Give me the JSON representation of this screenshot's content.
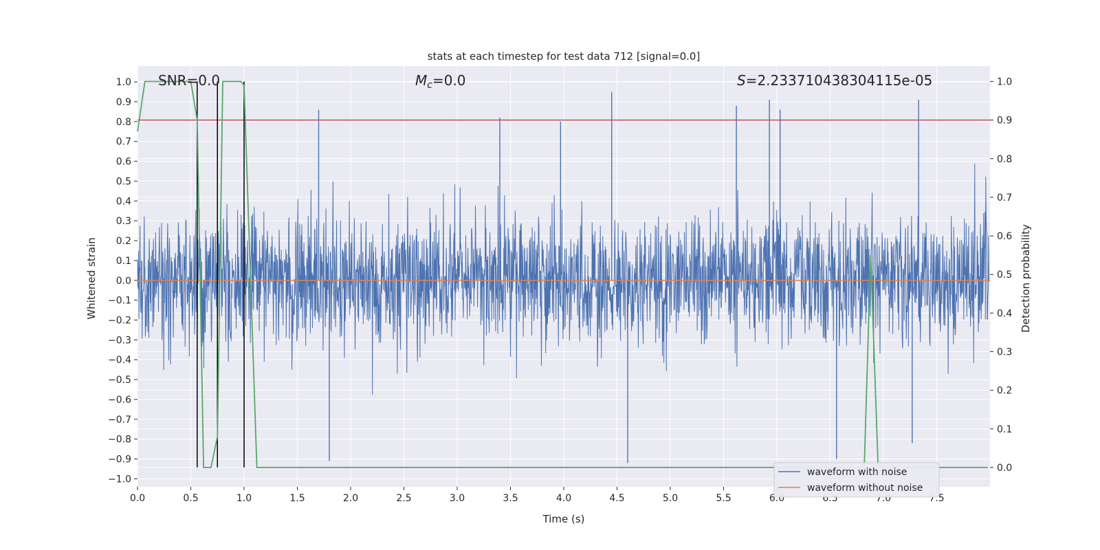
{
  "chart_data": {
    "type": "line",
    "title": "stats at each timestep for test data 712 [signal=0.0]",
    "xlabel": "Time (s)",
    "ylabel": "Whitened strain",
    "ylabel_right": "Detection probability",
    "xlim": [
      0.0,
      8.0
    ],
    "ylim": [
      -1.04,
      1.08
    ],
    "ylim_right": [
      -0.05,
      1.04
    ],
    "x_ticks": [
      0.0,
      0.5,
      1.0,
      1.5,
      2.0,
      2.5,
      3.0,
      3.5,
      4.0,
      4.5,
      5.0,
      5.5,
      6.0,
      6.5,
      7.0,
      7.5
    ],
    "x_tick_labels": [
      "0.0",
      "0.5",
      "1.0",
      "1.5",
      "2.0",
      "2.5",
      "3.0",
      "3.5",
      "4.0",
      "4.5",
      "5.0",
      "5.5",
      "6.0",
      "6.5",
      "7.0",
      "7.5"
    ],
    "y_ticks": [
      -1.0,
      -0.9,
      -0.8,
      -0.7,
      -0.6,
      -0.5,
      -0.4,
      -0.3,
      -0.2,
      -0.1,
      0.0,
      0.1,
      0.2,
      0.3,
      0.4,
      0.5,
      0.6,
      0.7,
      0.8,
      0.9,
      1.0
    ],
    "y_tick_labels": [
      "−1.0",
      "−0.9",
      "−0.8",
      "−0.7",
      "−0.6",
      "−0.5",
      "−0.4",
      "−0.3",
      "−0.2",
      "−0.1",
      "0.0",
      "0.1",
      "0.2",
      "0.3",
      "0.4",
      "0.5",
      "0.6",
      "0.7",
      "0.8",
      "0.9",
      "1.0"
    ],
    "y_right_ticks": [
      0.0,
      0.1,
      0.2,
      0.3,
      0.4,
      0.5,
      0.6,
      0.7,
      0.8,
      0.9,
      1.0
    ],
    "y_right_tick_labels": [
      "0.0",
      "0.1",
      "0.2",
      "0.3",
      "0.4",
      "0.5",
      "0.6",
      "0.7",
      "0.8",
      "0.9",
      "1.0"
    ],
    "annotations": {
      "snr": "SNR=0.0",
      "mc_symbol": "M",
      "mc_sub": "c",
      "mc_value": "=0.0",
      "s_symbol": "S",
      "s_value": "=2.233710438304115e-05"
    },
    "threshold_right": 0.9,
    "event_lines_x": [
      0.56,
      0.75,
      1.0
    ],
    "series": [
      {
        "name": "waveform with noise",
        "color": "#4c72b0",
        "axis": "left",
        "noise_envelope": {
          "x_range": [
            0.0,
            7.99
          ],
          "typical_abs": 0.42,
          "peaks_max": 0.95,
          "troughs_min": -0.92
        },
        "notable_peaks": [
          {
            "x": 1.7,
            "y": 0.86
          },
          {
            "x": 3.4,
            "y": 0.82
          },
          {
            "x": 3.97,
            "y": 0.8
          },
          {
            "x": 4.45,
            "y": 0.95
          },
          {
            "x": 5.62,
            "y": 0.88
          },
          {
            "x": 5.93,
            "y": 0.91
          },
          {
            "x": 6.03,
            "y": 0.86
          },
          {
            "x": 7.33,
            "y": 0.91
          }
        ],
        "notable_troughs": [
          {
            "x": 1.8,
            "y": -0.91
          },
          {
            "x": 4.6,
            "y": -0.92
          },
          {
            "x": 6.56,
            "y": -0.9
          },
          {
            "x": 7.27,
            "y": -0.82
          }
        ]
      },
      {
        "name": "waveform without noise",
        "color": "#dd8452",
        "axis": "left",
        "x": [
          0.0,
          8.0
        ],
        "y": [
          0.0,
          0.0
        ]
      },
      {
        "name": "detection probability",
        "color": "#55a868",
        "axis": "right",
        "x": [
          0.0,
          0.07,
          0.5,
          0.56,
          0.62,
          0.69,
          0.75,
          0.8,
          0.83,
          0.97,
          1.0,
          1.12,
          6.82,
          6.88,
          6.95,
          7.98
        ],
        "y": [
          0.87,
          1.0,
          1.0,
          0.9,
          0.0,
          0.0,
          0.08,
          1.0,
          1.0,
          1.0,
          0.99,
          0.0,
          0.0,
          0.55,
          0.0,
          0.0
        ]
      }
    ],
    "legend": {
      "location": "bottom-right",
      "entries": [
        "waveform with noise",
        "waveform without noise"
      ]
    },
    "colors": {
      "plot_background": "#eaeaf2",
      "grid": "#ffffff",
      "threshold": "#c44e52",
      "event_line": "#000000",
      "text": "#262626"
    }
  }
}
